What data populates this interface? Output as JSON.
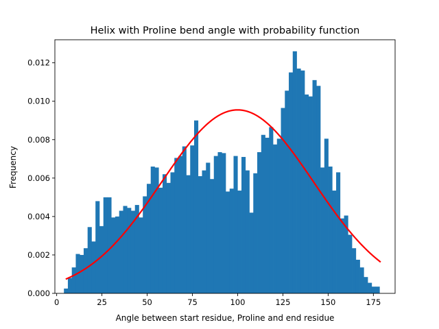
{
  "chart_data": {
    "type": "bar",
    "title": "Helix with Proline bend angle with probability function",
    "xlabel": "Angle between start residue, Proline and end residue",
    "ylabel": "Frequency",
    "xlim": [
      -1,
      187
    ],
    "ylim": [
      0,
      0.0132
    ],
    "xticks": [
      0,
      25,
      50,
      75,
      100,
      125,
      150,
      175
    ],
    "yticks": [
      0.0,
      0.002,
      0.004,
      0.006,
      0.008,
      0.01,
      0.012
    ],
    "ytick_labels": [
      "0.000",
      "0.002",
      "0.004",
      "0.006",
      "0.008",
      "0.010",
      "0.012"
    ],
    "grid": false,
    "histogram": {
      "color": "#1f77b4",
      "bin_start": 4,
      "bin_width": 2.18,
      "values": [
        0.00025,
        0.0008,
        0.00135,
        0.00205,
        0.002,
        0.00235,
        0.00345,
        0.0027,
        0.0048,
        0.0035,
        0.005,
        0.005,
        0.00395,
        0.004,
        0.0043,
        0.00455,
        0.00445,
        0.0043,
        0.0046,
        0.00395,
        0.00505,
        0.0057,
        0.0066,
        0.00655,
        0.0055,
        0.0062,
        0.00575,
        0.0063,
        0.00705,
        0.00715,
        0.00765,
        0.00615,
        0.0077,
        0.009,
        0.0061,
        0.0064,
        0.0068,
        0.00595,
        0.00715,
        0.00735,
        0.0073,
        0.0053,
        0.00545,
        0.00715,
        0.00535,
        0.0071,
        0.0064,
        0.0042,
        0.00625,
        0.00735,
        0.00825,
        0.0081,
        0.00865,
        0.00775,
        0.00805,
        0.00965,
        0.01055,
        0.0115,
        0.0126,
        0.0117,
        0.0116,
        0.01035,
        0.01025,
        0.0111,
        0.0108,
        0.00655,
        0.00805,
        0.0066,
        0.00535,
        0.0063,
        0.0039,
        0.00405,
        0.00305,
        0.00235,
        0.00175,
        0.00135,
        0.00085,
        0.00055,
        0.00035,
        0.00035
      ]
    },
    "fit_curve": {
      "type": "line",
      "color": "#ff0000",
      "distribution": "normal",
      "mean": 100,
      "std": 42,
      "peak": 0.00955,
      "x_range": [
        5,
        179
      ]
    }
  }
}
